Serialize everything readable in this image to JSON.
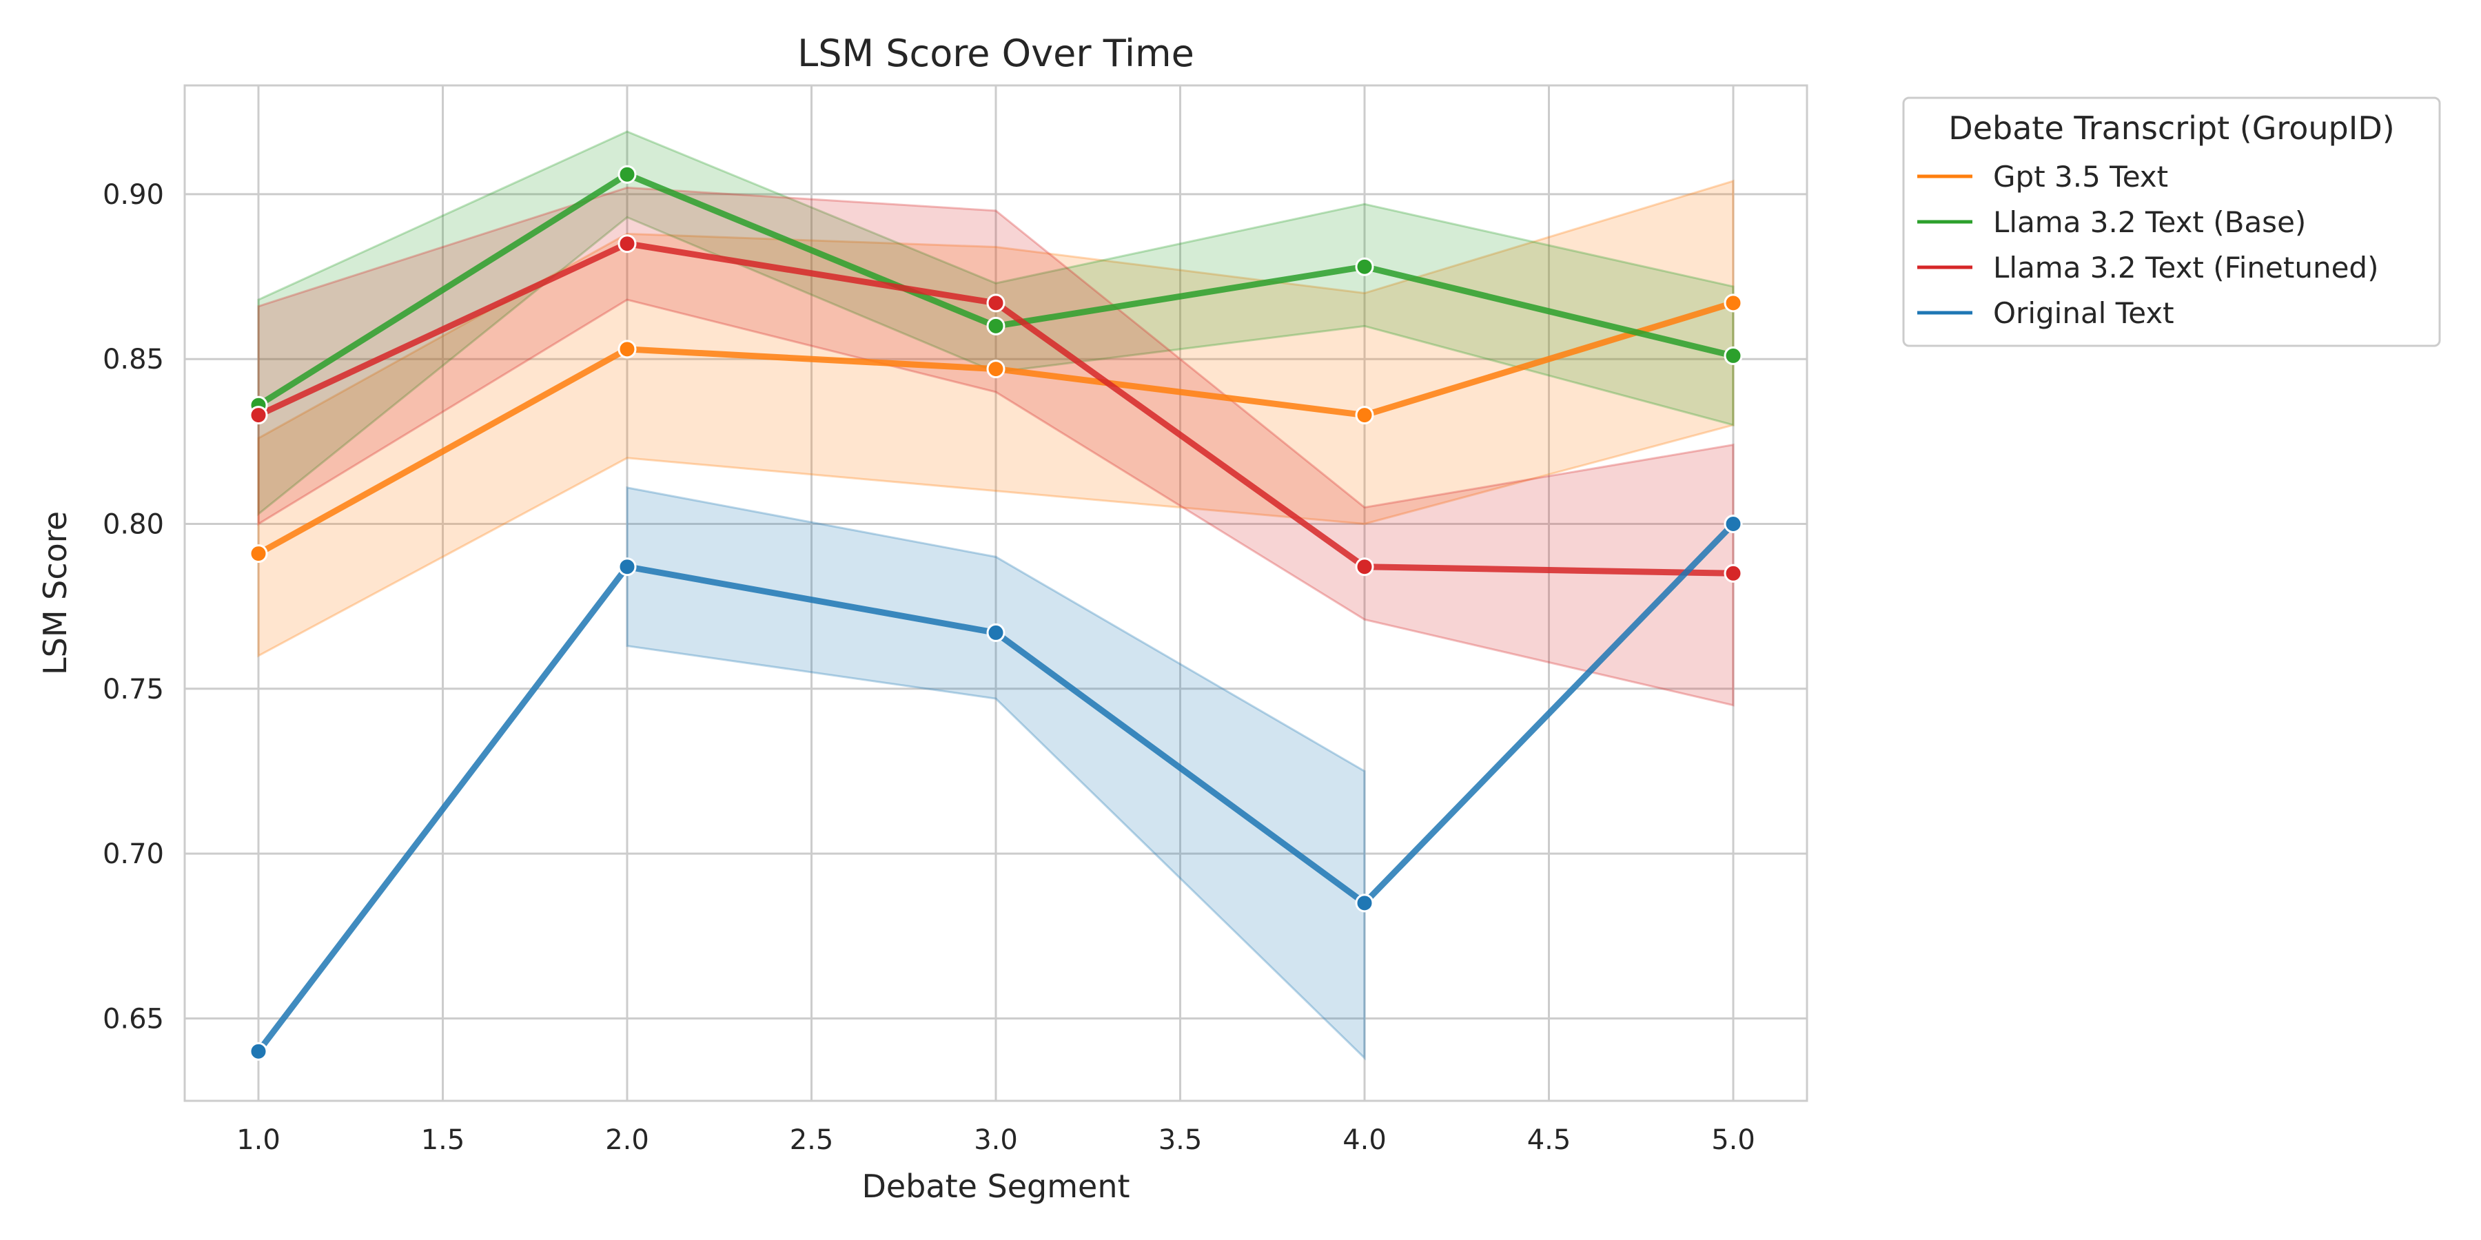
{
  "chart_data": {
    "type": "line",
    "title": "LSM Score Over Time",
    "xlabel": "Debate Segment",
    "ylabel": "LSM Score",
    "xlim": [
      0.8,
      5.2
    ],
    "ylim": [
      0.625,
      0.933
    ],
    "xticks": [
      "1.0",
      "1.5",
      "2.0",
      "2.5",
      "3.0",
      "3.5",
      "4.0",
      "4.5",
      "5.0"
    ],
    "yticks": [
      "0.65",
      "0.70",
      "0.75",
      "0.80",
      "0.85",
      "0.90"
    ],
    "grid": true,
    "legend": {
      "title": "Debate Transcript (GroupID)",
      "placement": "outside-right"
    },
    "x": [
      1,
      2,
      3,
      4,
      5
    ],
    "series": [
      {
        "name": "Gpt 3.5 Text",
        "color": "#ff7f0e",
        "values": [
          0.791,
          0.853,
          0.847,
          0.833,
          0.867
        ],
        "lower": [
          0.76,
          0.82,
          0.81,
          0.8,
          0.83
        ],
        "upper": [
          0.826,
          0.888,
          0.884,
          0.87,
          0.904
        ]
      },
      {
        "name": "Llama 3.2 Text (Base)",
        "color": "#2ca02c",
        "values": [
          0.836,
          0.906,
          0.86,
          0.878,
          0.851
        ],
        "lower": [
          0.803,
          0.893,
          0.846,
          0.86,
          0.83
        ],
        "upper": [
          0.868,
          0.919,
          0.873,
          0.897,
          0.872
        ]
      },
      {
        "name": "Llama 3.2 Text (Finetuned)",
        "color": "#d62728",
        "values": [
          0.833,
          0.885,
          0.867,
          0.787,
          0.785
        ],
        "lower": [
          0.8,
          0.868,
          0.84,
          0.771,
          0.745
        ],
        "upper": [
          0.866,
          0.902,
          0.895,
          0.805,
          0.824
        ]
      },
      {
        "name": "Original Text",
        "color": "#1f77b4",
        "values": [
          0.64,
          0.787,
          0.767,
          0.685,
          0.8
        ],
        "lower": [
          null,
          0.763,
          0.747,
          0.638,
          null
        ],
        "upper": [
          null,
          0.811,
          0.79,
          0.725,
          null
        ]
      }
    ]
  }
}
